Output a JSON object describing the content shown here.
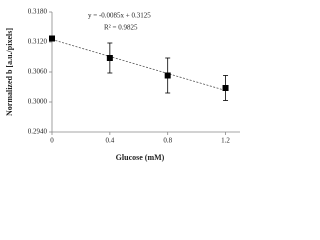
{
  "chart_data": {
    "type": "scatter",
    "x_label": "Glucose (mM)",
    "y_label": "Normalized b [a.u./pixels]",
    "x": [
      0,
      0.4,
      0.8,
      1.2
    ],
    "series": [
      {
        "name": "Normalized b",
        "color": "#000000",
        "values": [
          0.3127,
          0.3088,
          0.3053,
          0.3028
        ],
        "errors": [
          0.0005,
          0.003,
          0.0035,
          0.0025
        ]
      }
    ],
    "trendline": {
      "slope": -0.0085,
      "intercept": 0.3125,
      "equation": "y = -0.0085x + 0.3125",
      "r2_label": "R² = 0.9825"
    },
    "xlim": [
      0,
      1.3
    ],
    "xticks": [
      0,
      0.4,
      0.8,
      1.2
    ],
    "ylim": [
      0.294,
      0.318
    ],
    "yticks": [
      {
        "value": 0.294,
        "label": "0.2940"
      },
      {
        "value": 0.3,
        "label": "0.3000"
      },
      {
        "value": 0.306,
        "label": "0.3060"
      },
      {
        "value": 0.312,
        "label": "0.3120"
      },
      {
        "value": 0.318,
        "label": "0.3180"
      }
    ],
    "grid": false
  }
}
